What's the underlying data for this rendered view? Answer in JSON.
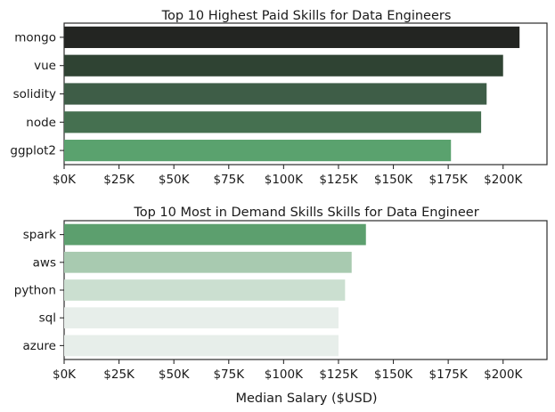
{
  "chart_data": [
    {
      "type": "bar",
      "orientation": "horizontal",
      "title": "Top 10 Highest Paid Skills for Data Engineers",
      "xlabel": "",
      "ylabel": "",
      "categories": [
        "mongo",
        "vue",
        "solidity",
        "node",
        "ggplot2"
      ],
      "values": [
        207500,
        200000,
        192500,
        190000,
        176250
      ],
      "colors": [
        "#232522",
        "#2f4333",
        "#3e5d47",
        "#457050",
        "#5aa26e"
      ],
      "xlim": [
        0,
        220000
      ],
      "xticks": [
        0,
        25000,
        50000,
        75000,
        100000,
        125000,
        150000,
        175000,
        200000
      ],
      "xtick_labels": [
        "$0K",
        "$25K",
        "$50K",
        "$75K",
        "$100K",
        "$125K",
        "$150K",
        "$175K",
        "$200K"
      ],
      "grid": false
    },
    {
      "type": "bar",
      "orientation": "horizontal",
      "title": "Top 10 Most in Demand Skills Skills for Data Engineer",
      "xlabel": "Median Salary ($USD)",
      "ylabel": "",
      "categories": [
        "spark",
        "aws",
        "python",
        "sql",
        "azure"
      ],
      "values": [
        137500,
        131000,
        128000,
        125000,
        125000
      ],
      "colors": [
        "#5c9f6e",
        "#a8cab0",
        "#cbdfd0",
        "#e7eeea",
        "#e7eeea"
      ],
      "xlim": [
        0,
        220000
      ],
      "xticks": [
        0,
        25000,
        50000,
        75000,
        100000,
        125000,
        150000,
        175000,
        200000
      ],
      "xtick_labels": [
        "$0K",
        "$25K",
        "$50K",
        "$75K",
        "$100K",
        "$125K",
        "$150K",
        "$175K",
        "$200K"
      ],
      "grid": false
    }
  ]
}
